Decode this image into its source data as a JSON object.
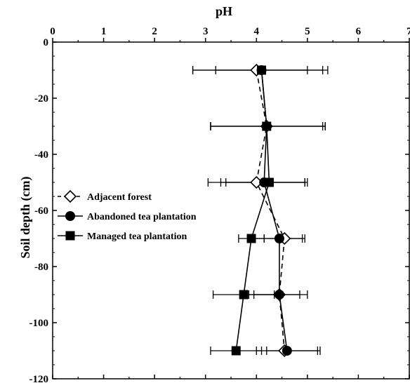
{
  "chart_data": {
    "type": "scatter",
    "title": "pH",
    "xlabel": "",
    "ylabel": "Soil depth (cm)",
    "xlim": [
      0,
      7
    ],
    "ylim": [
      -120,
      0
    ],
    "x_axis_position": "top",
    "x_ticks": [
      0,
      1,
      2,
      3,
      4,
      5,
      6,
      7
    ],
    "x_tick_labels": [
      "0",
      "1",
      "2",
      "3",
      "4",
      "5",
      "6",
      "7"
    ],
    "y_ticks": [
      0,
      -20,
      -40,
      -60,
      -80,
      -100,
      -120
    ],
    "y_tick_labels": [
      "0",
      "-20",
      "-40",
      "-60",
      "-80",
      "-100",
      "-120"
    ],
    "grid": false,
    "legend_position": "left-middle",
    "colors": {
      "line": "#000000",
      "marker_open_fill": "#ffffff",
      "marker_fill": "#000000"
    },
    "series": [
      {
        "name": "Adjacent forest",
        "marker": "open-diamond",
        "line_style": "dashed",
        "points": [
          {
            "depth": -10,
            "pH": 4.0,
            "err_low": 3.2,
            "err_high": 5.0
          },
          {
            "depth": -30,
            "pH": 4.2,
            "err_low": 3.1,
            "err_high": 5.3
          },
          {
            "depth": -50,
            "pH": 4.0,
            "err_low": 3.4,
            "err_high": 4.95
          },
          {
            "depth": -70,
            "pH": 4.55,
            "err_low": 4.15,
            "err_high": 4.9
          },
          {
            "depth": -90,
            "pH": 4.45,
            "err_low": 3.95,
            "err_high": 4.85
          },
          {
            "depth": -110,
            "pH": 4.55,
            "err_low": 4.0,
            "err_high": 5.2
          }
        ]
      },
      {
        "name": "Abandoned tea plantation",
        "marker": "filled-circle",
        "line_style": "solid",
        "points": [
          {
            "depth": -10,
            "pH": 4.1,
            "err_low": 2.75,
            "err_high": 5.3
          },
          {
            "depth": -30,
            "pH": 4.2,
            "err_low": 3.1,
            "err_high": 5.35
          },
          {
            "depth": -50,
            "pH": 4.15,
            "err_low": 3.3,
            "err_high": 4.95
          },
          {
            "depth": -70,
            "pH": 4.45,
            "err_low": 3.95,
            "err_high": 4.95
          },
          {
            "depth": -90,
            "pH": 4.45,
            "err_low": 3.85,
            "err_high": 5.0
          },
          {
            "depth": -110,
            "pH": 4.6,
            "err_low": 4.2,
            "err_high": 5.25
          }
        ]
      },
      {
        "name": "Managed tea plantation",
        "marker": "filled-square",
        "line_style": "solid",
        "points": [
          {
            "depth": -10,
            "pH": 4.1,
            "err_low": 2.75,
            "err_high": 5.4
          },
          {
            "depth": -30,
            "pH": 4.2,
            "err_low": 3.1,
            "err_high": 5.35
          },
          {
            "depth": -50,
            "pH": 4.25,
            "err_low": 3.05,
            "err_high": 5.0
          },
          {
            "depth": -70,
            "pH": 3.9,
            "err_low": 3.65,
            "err_high": 4.15
          },
          {
            "depth": -90,
            "pH": 3.75,
            "err_low": 3.15,
            "err_high": 4.35
          },
          {
            "depth": -110,
            "pH": 3.6,
            "err_low": 3.1,
            "err_high": 4.1
          }
        ]
      }
    ]
  }
}
